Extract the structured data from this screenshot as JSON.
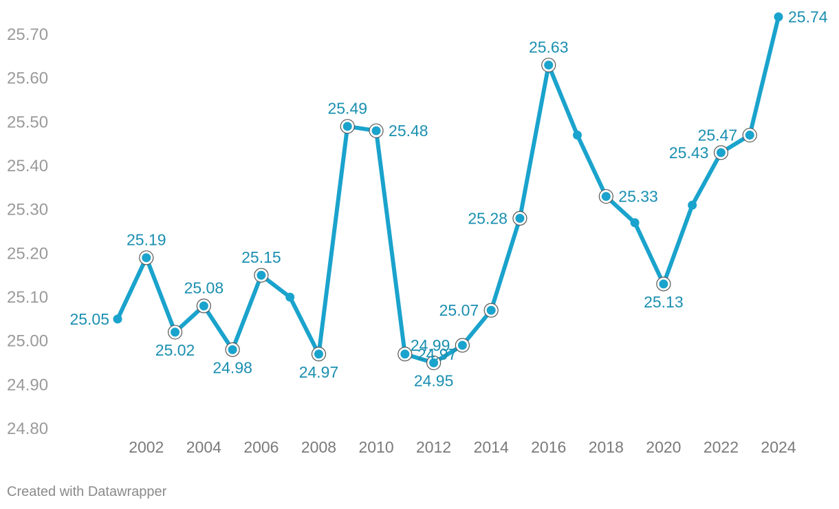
{
  "footer": "Created with Datawrapper",
  "colors": {
    "line": "#1aa3cc",
    "label": "#1a8fb0",
    "axis": "#9a9a9a"
  },
  "chart_data": {
    "type": "line",
    "title": "",
    "xlabel": "",
    "ylabel": "",
    "ylim": [
      24.8,
      25.7
    ],
    "yticks": [
      "25.70",
      "25.60",
      "25.50",
      "25.40",
      "25.30",
      "25.20",
      "25.10",
      "25.00",
      "24.90",
      "24.80"
    ],
    "xticks": [
      "2002",
      "2004",
      "2006",
      "2008",
      "2010",
      "2012",
      "2014",
      "2016",
      "2018",
      "2020",
      "2022",
      "2024"
    ],
    "grid": false,
    "series": [
      {
        "x": [
          2001,
          2002,
          2003,
          2004,
          2005,
          2006,
          2007,
          2008,
          2009,
          2010,
          2011,
          2012,
          2013,
          2014,
          2015,
          2016,
          2017,
          2018,
          2019,
          2020,
          2021,
          2022,
          2023,
          2024
        ],
        "values": [
          25.05,
          25.19,
          25.02,
          25.08,
          24.98,
          25.15,
          25.1,
          24.97,
          25.49,
          25.48,
          24.97,
          24.95,
          24.99,
          25.07,
          25.28,
          25.63,
          25.47,
          25.33,
          25.27,
          25.13,
          25.31,
          25.43,
          25.47,
          25.74
        ]
      }
    ],
    "data_labels": [
      {
        "x": 2001,
        "text": "25.05"
      },
      {
        "x": 2002,
        "text": "25.19"
      },
      {
        "x": 2003,
        "text": "25.02"
      },
      {
        "x": 2004,
        "text": "25.08"
      },
      {
        "x": 2005,
        "text": "24.98"
      },
      {
        "x": 2006,
        "text": "25.15"
      },
      {
        "x": 2008,
        "text": "24.97"
      },
      {
        "x": 2009,
        "text": "25.49"
      },
      {
        "x": 2010,
        "text": "25.48"
      },
      {
        "x": 2011,
        "text": "24.97"
      },
      {
        "x": 2012,
        "text": "24.95"
      },
      {
        "x": 2013,
        "text": "24.99"
      },
      {
        "x": 2014,
        "text": "25.07"
      },
      {
        "x": 2015,
        "text": "25.28"
      },
      {
        "x": 2016,
        "text": "25.63"
      },
      {
        "x": 2018,
        "text": "25.33"
      },
      {
        "x": 2020,
        "text": "25.13"
      },
      {
        "x": 2022,
        "text": "25.43"
      },
      {
        "x": 2023,
        "text": "25.47"
      },
      {
        "x": 2024,
        "text": "25.74"
      }
    ]
  }
}
